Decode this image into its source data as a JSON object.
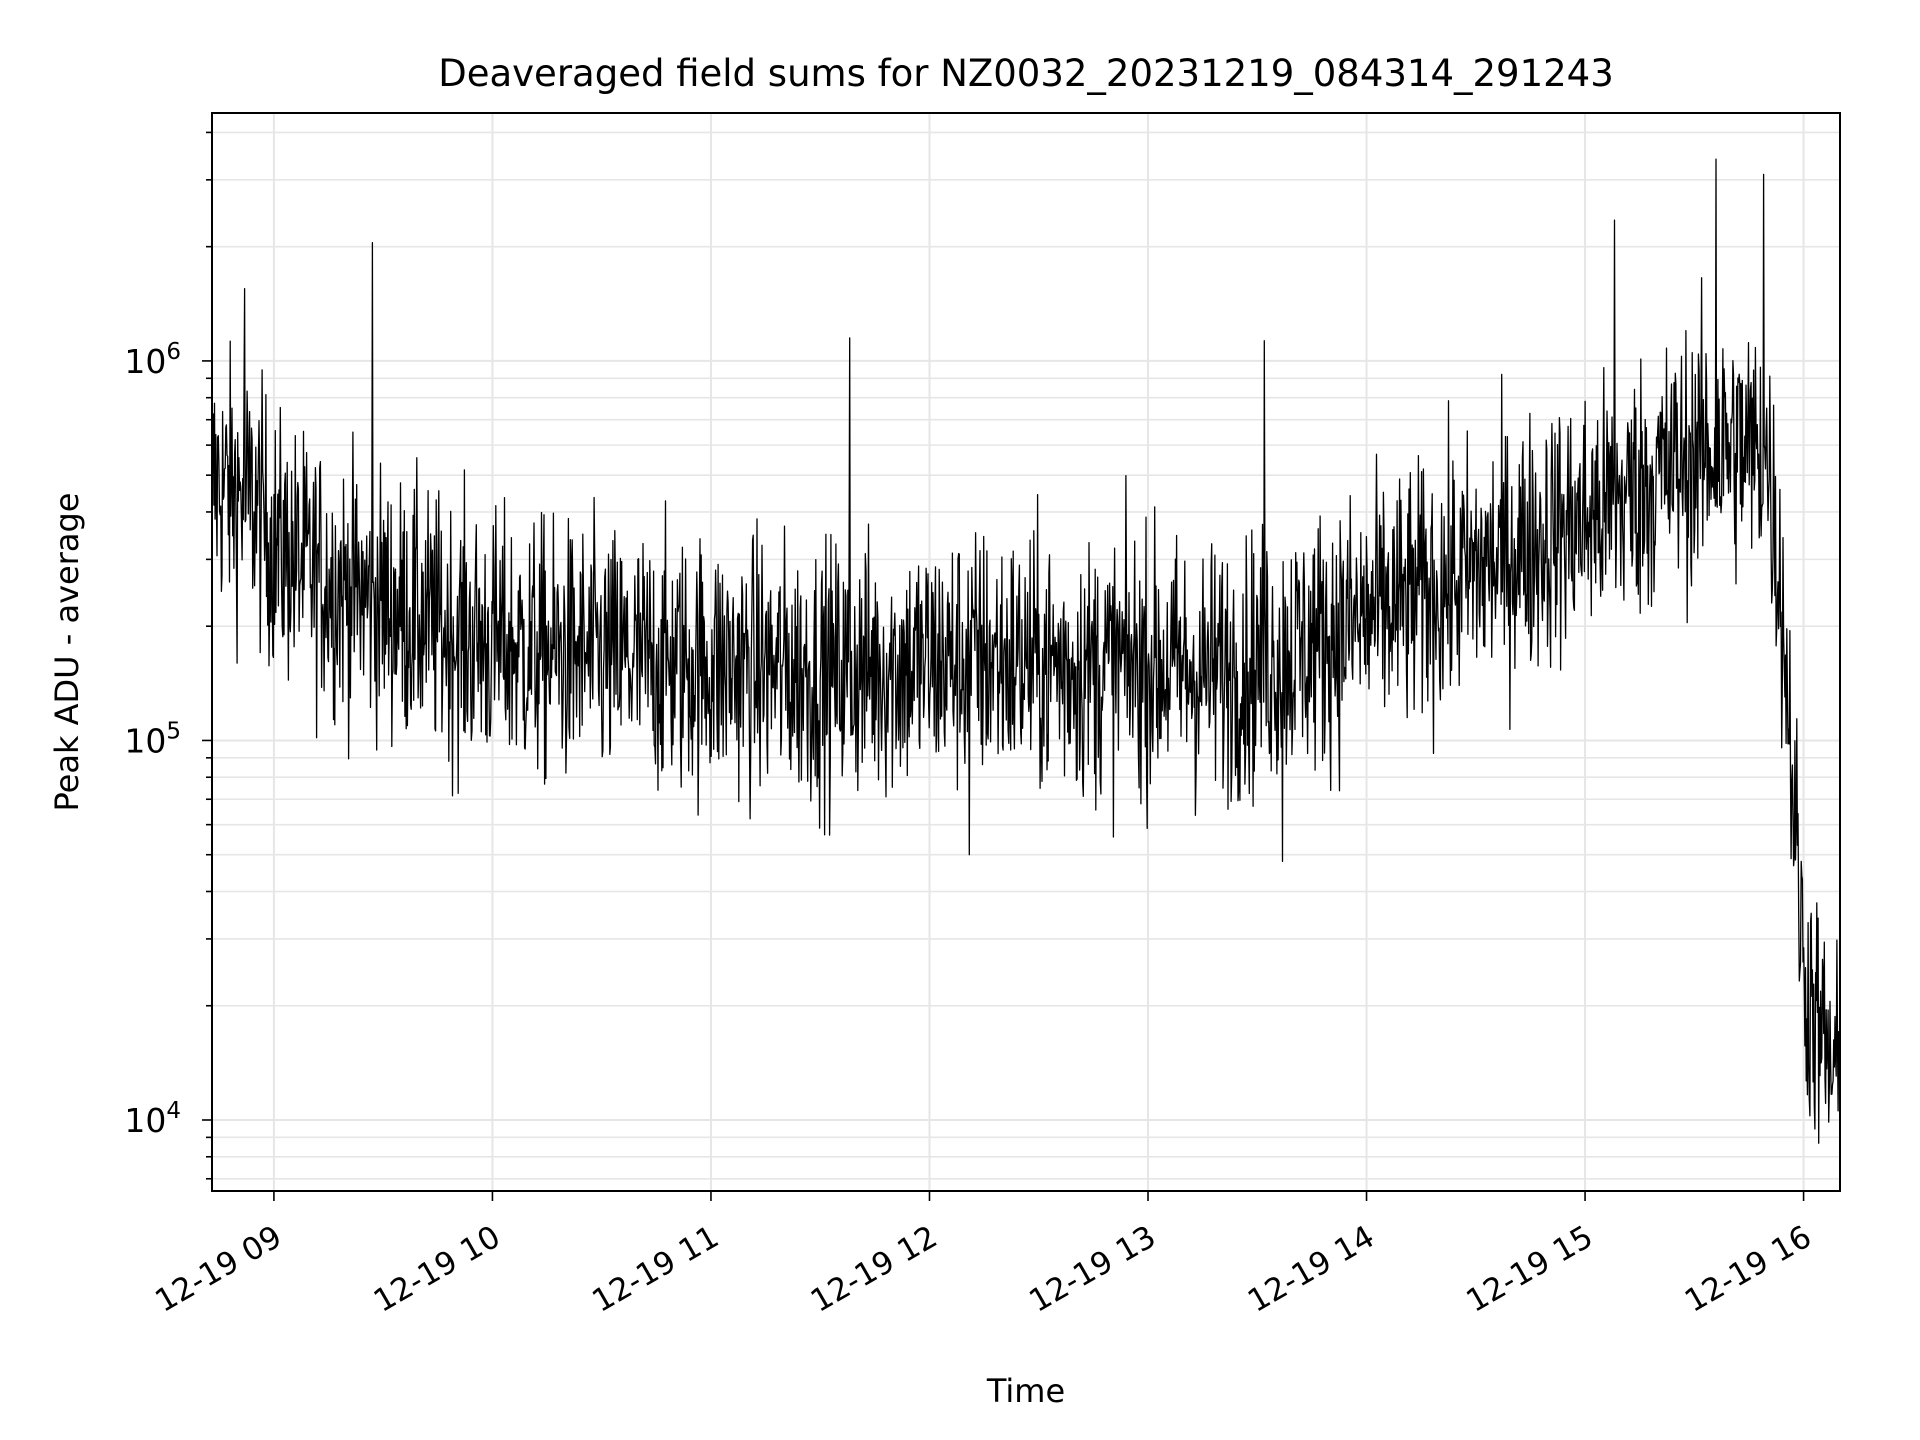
{
  "chart_data": {
    "type": "line",
    "title": "Deaveraged field sums for NZ0032_20231219_084314_291243",
    "xlabel": "Time",
    "ylabel": "Peak ADU - average",
    "y_scale": "log",
    "grid": true,
    "legend": "none",
    "line_color": "#000000",
    "grid_color": "#e6e6e6",
    "xlim": [
      "2023-12-19 08:43",
      "2023-12-19 16:10"
    ],
    "ylim": [
      6500,
      4500000
    ],
    "x_ticks": [
      {
        "label": "12-19 09",
        "value": "2023-12-19 09:00"
      },
      {
        "label": "12-19 10",
        "value": "2023-12-19 10:00"
      },
      {
        "label": "12-19 11",
        "value": "2023-12-19 11:00"
      },
      {
        "label": "12-19 12",
        "value": "2023-12-19 12:00"
      },
      {
        "label": "12-19 13",
        "value": "2023-12-19 13:00"
      },
      {
        "label": "12-19 14",
        "value": "2023-12-19 14:00"
      },
      {
        "label": "12-19 15",
        "value": "2023-12-19 15:00"
      },
      {
        "label": "12-19 16",
        "value": "2023-12-19 16:00"
      }
    ],
    "y_ticks": [
      {
        "base": "10",
        "exp": "4",
        "value": 10000
      },
      {
        "base": "10",
        "exp": "5",
        "value": 100000
      },
      {
        "base": "10",
        "exp": "6",
        "value": 1000000
      }
    ],
    "series": [
      {
        "x": [
          "2023-12-19 08:43",
          "2023-12-19 08:50",
          "2023-12-19 08:55",
          "2023-12-19 09:00",
          "2023-12-19 09:10",
          "2023-12-19 09:20",
          "2023-12-19 09:30",
          "2023-12-19 09:40",
          "2023-12-19 09:50",
          "2023-12-19 10:00",
          "2023-12-19 10:15",
          "2023-12-19 10:30",
          "2023-12-19 10:45",
          "2023-12-19 11:00",
          "2023-12-19 11:15",
          "2023-12-19 11:30",
          "2023-12-19 11:45",
          "2023-12-19 12:00",
          "2023-12-19 12:15",
          "2023-12-19 12:30",
          "2023-12-19 12:45",
          "2023-12-19 13:00",
          "2023-12-19 13:15",
          "2023-12-19 13:30",
          "2023-12-19 13:45",
          "2023-12-19 14:00",
          "2023-12-19 14:15",
          "2023-12-19 14:30",
          "2023-12-19 14:45",
          "2023-12-19 15:00",
          "2023-12-19 15:10",
          "2023-12-19 15:20",
          "2023-12-19 15:30",
          "2023-12-19 15:40",
          "2023-12-19 15:50",
          "2023-12-19 15:53",
          "2023-12-19 15:55",
          "2023-12-19 15:57",
          "2023-12-19 16:00",
          "2023-12-19 16:05",
          "2023-12-19 16:10"
        ],
        "y": [
          480000,
          450000,
          420000,
          330000,
          280000,
          250000,
          230000,
          210000,
          190000,
          180000,
          170000,
          165000,
          160000,
          158000,
          155000,
          150000,
          155000,
          160000,
          165000,
          160000,
          155000,
          160000,
          150000,
          160000,
          180000,
          210000,
          240000,
          280000,
          330000,
          380000,
          430000,
          500000,
          560000,
          600000,
          560000,
          300000,
          170000,
          80000,
          25000,
          16000,
          12000
        ]
      }
    ],
    "spikes": [
      {
        "x": "2023-12-19 08:52",
        "y": 1550000
      },
      {
        "x": "2023-12-19 09:27",
        "y": 2050000
      },
      {
        "x": "2023-12-19 11:38",
        "y": 1150000
      },
      {
        "x": "2023-12-19 13:32",
        "y": 1130000
      },
      {
        "x": "2023-12-19 15:08",
        "y": 2350000
      },
      {
        "x": "2023-12-19 15:36",
        "y": 3400000
      },
      {
        "x": "2023-12-19 15:49",
        "y": 3100000
      },
      {
        "x": "2023-12-19 13:37",
        "y": 48000
      },
      {
        "x": "2023-12-19 12:11",
        "y": 50000
      }
    ]
  }
}
